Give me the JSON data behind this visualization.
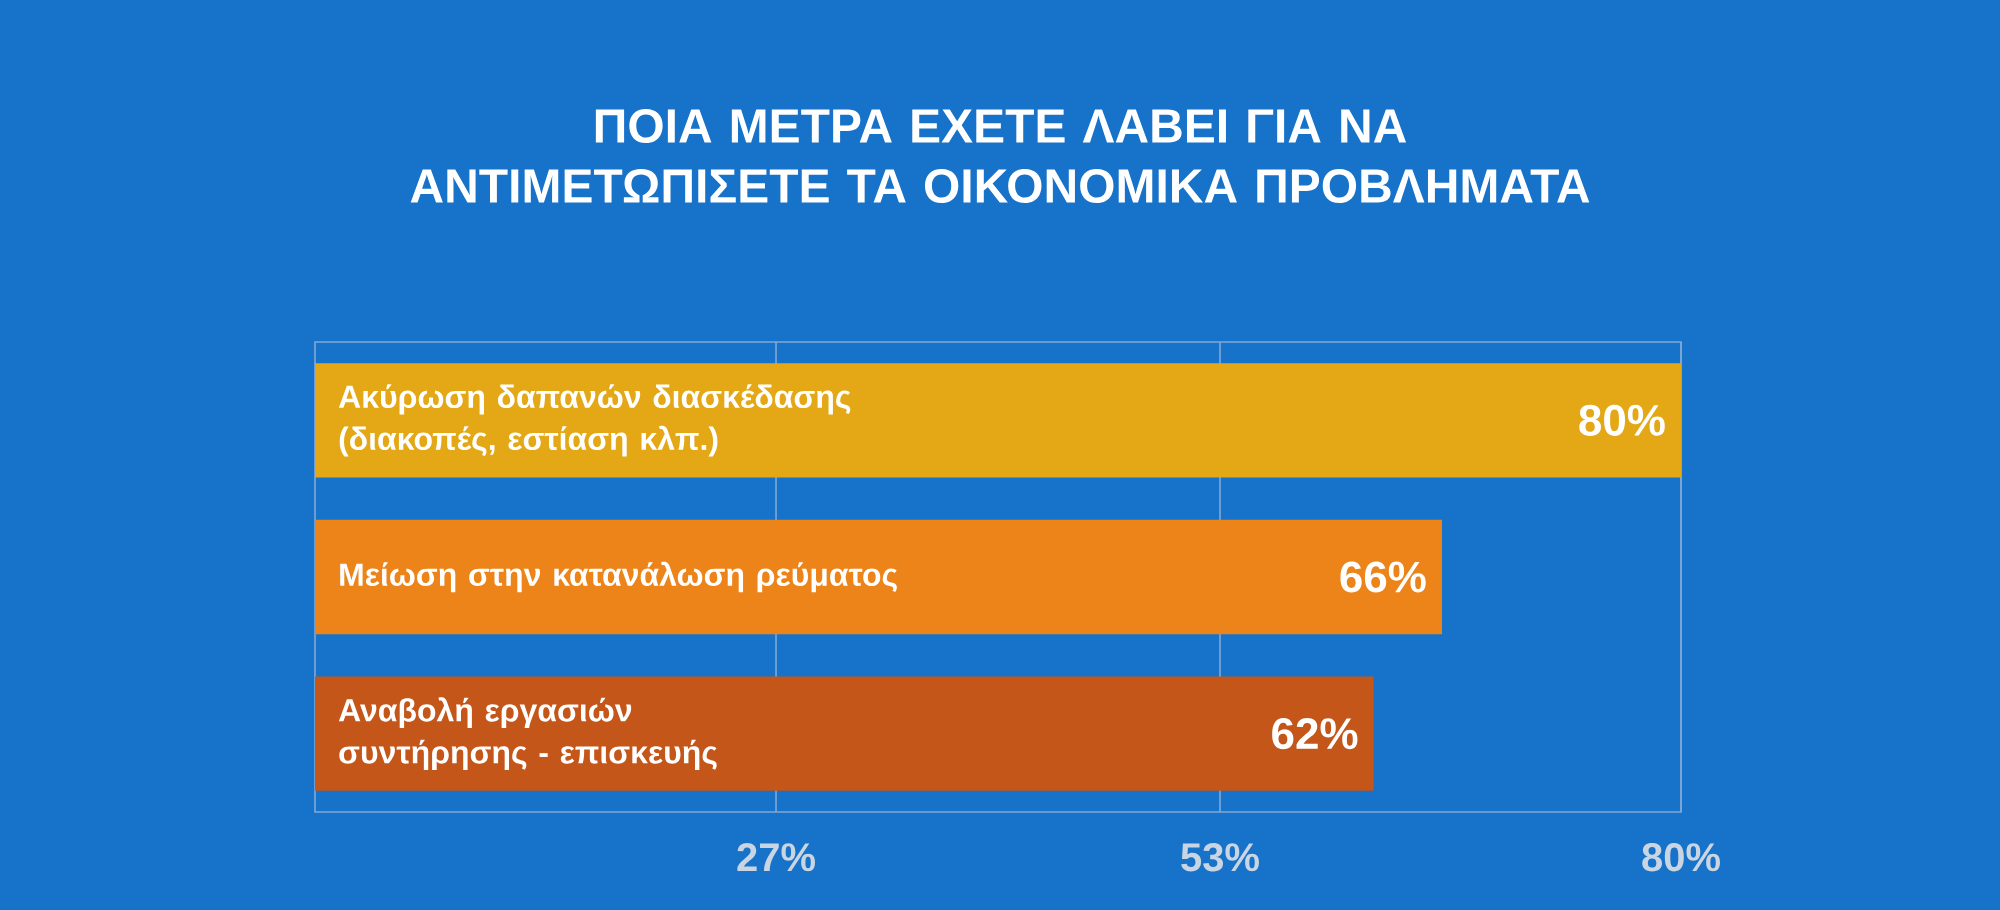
{
  "chart_data": {
    "type": "bar",
    "orientation": "horizontal",
    "title": "ΠΟΙΑ ΜΕΤΡΑ ΕΧΕΤΕ ΛΑΒΕΙ ΓΙΑ ΝΑ ΑΝΤΙΜΕΤΩΠΙΣΕΤΕ ΤΑ ΟΙΚΟΝΟΜΙΚΑ ΠΡΟΒΛΗΜΑΤΑ",
    "categories": [
      "Ακύρωση δαπανών διασκέδασης (διακοπές, εστίαση κλπ.)",
      "Μείωση στην κατανάλωση ρεύματος",
      "Αναβολή εργασιών συντήρησης - επισκευής"
    ],
    "values": [
      80,
      66,
      62
    ],
    "colors": [
      "#e4a816",
      "#ec8419",
      "#c4561a"
    ],
    "value_labels": [
      "80%",
      "66%",
      "62%"
    ],
    "xlim": [
      0,
      80
    ],
    "xticks": [
      {
        "value": 27,
        "label": "27%"
      },
      {
        "value": 53,
        "label": "53%"
      },
      {
        "value": 80,
        "label": "80%"
      }
    ],
    "grid": "x"
  }
}
